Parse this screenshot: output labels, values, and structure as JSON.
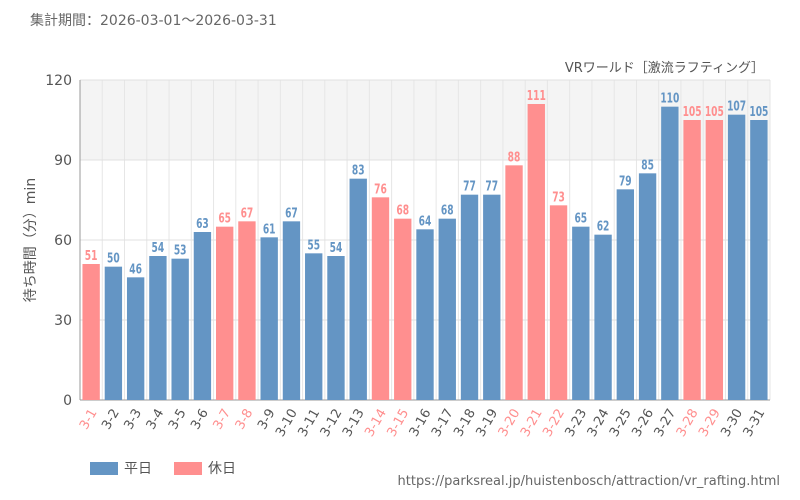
{
  "header": {
    "period_label": "集計期間：2026-03-01～2026-03-31"
  },
  "source_url": "https://parksreal.jp/huistenbosch/attraction/vr_rafting.html",
  "legend": {
    "items": [
      {
        "label": "平日",
        "color": "#6495c4"
      },
      {
        "label": "休日",
        "color": "#ff8f8f"
      }
    ]
  },
  "chart_data": {
    "type": "bar",
    "title": "VRワールド［激流ラフティング］",
    "xlabel": "",
    "ylabel": "待ち時間（分）min",
    "ylim": [
      0,
      120
    ],
    "yticks": [
      0,
      30,
      60,
      90,
      120
    ],
    "highlight_band": [
      90,
      120
    ],
    "grid": true,
    "colors": {
      "weekday": "#6495c4",
      "holiday": "#ff8f8f"
    },
    "categories": [
      "3-1",
      "3-2",
      "3-3",
      "3-4",
      "3-5",
      "3-6",
      "3-7",
      "3-8",
      "3-9",
      "3-10",
      "3-11",
      "3-12",
      "3-13",
      "3-14",
      "3-15",
      "3-16",
      "3-17",
      "3-18",
      "3-19",
      "3-20",
      "3-21",
      "3-22",
      "3-23",
      "3-24",
      "3-25",
      "3-26",
      "3-27",
      "3-28",
      "3-29",
      "3-30",
      "3-31"
    ],
    "values": [
      51,
      50,
      46,
      54,
      53,
      63,
      65,
      67,
      61,
      67,
      55,
      54,
      83,
      76,
      68,
      64,
      68,
      77,
      77,
      88,
      111,
      73,
      65,
      62,
      79,
      85,
      110,
      105,
      105,
      107,
      105
    ],
    "day_type": [
      "holiday",
      "weekday",
      "weekday",
      "weekday",
      "weekday",
      "weekday",
      "holiday",
      "holiday",
      "weekday",
      "weekday",
      "weekday",
      "weekday",
      "weekday",
      "holiday",
      "holiday",
      "weekday",
      "weekday",
      "weekday",
      "weekday",
      "holiday",
      "holiday",
      "holiday",
      "weekday",
      "weekday",
      "weekday",
      "weekday",
      "weekday",
      "holiday",
      "holiday",
      "weekday",
      "weekday"
    ]
  }
}
